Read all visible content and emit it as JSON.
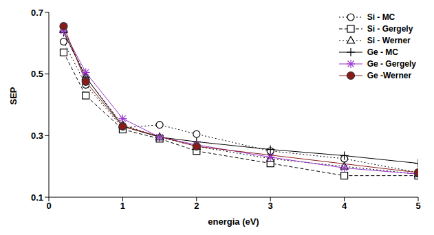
{
  "chart_data": {
    "type": "line",
    "x_label": "energia (eV)",
    "y_label": "SEP",
    "xlim": [
      0,
      5
    ],
    "ylim": [
      0.1,
      0.7
    ],
    "xticks": [
      0,
      1,
      2,
      3,
      4,
      5
    ],
    "yticks": [
      0.1,
      0.3,
      0.5,
      0.7
    ],
    "grid": false,
    "legend": "upper right",
    "series": [
      {
        "name": "Si - MC",
        "color": "#000000",
        "marker": "circle",
        "line_style": "dotted",
        "x": [
          0.2,
          0.5,
          1,
          1.5,
          2,
          3,
          4,
          5
        ],
        "values": [
          0.605,
          0.465,
          0.325,
          0.335,
          0.305,
          0.25,
          0.225,
          0.18
        ]
      },
      {
        "name": "Si - Gergely",
        "color": "#000000",
        "marker": "square",
        "line_style": "dashed",
        "x": [
          0.2,
          0.5,
          1,
          1.5,
          2,
          3,
          4,
          5
        ],
        "values": [
          0.57,
          0.43,
          0.32,
          0.29,
          0.25,
          0.21,
          0.17,
          0.17
        ]
      },
      {
        "name": "Si - Werner",
        "color": "#000000",
        "marker": "triangle",
        "line_style": "dotted",
        "x": [
          0.2,
          0.5,
          1,
          1.5,
          2,
          3,
          4,
          5
        ],
        "values": [
          0.645,
          0.49,
          0.335,
          0.295,
          0.265,
          0.225,
          0.2,
          0.175
        ]
      },
      {
        "name": "Ge - MC",
        "color": "#000000",
        "marker": "plus",
        "line_style": "solid",
        "x": [
          0.2,
          0.5,
          1,
          1.5,
          2,
          3,
          4,
          5
        ],
        "values": [
          0.635,
          0.49,
          0.33,
          0.295,
          0.28,
          0.255,
          0.235,
          0.21
        ]
      },
      {
        "name": "Ge - Gergely",
        "color": "#9933cc",
        "marker": "star",
        "line_style": "solid",
        "x": [
          0.2,
          0.5,
          1,
          1.5,
          2,
          3,
          4,
          5
        ],
        "values": [
          0.64,
          0.505,
          0.355,
          0.295,
          0.27,
          0.23,
          0.195,
          0.175
        ]
      },
      {
        "name": "Ge -Werner",
        "color": "#8b1a1a",
        "marker": "filled_circle",
        "line_style": "solid",
        "x": [
          0.2,
          0.5,
          1,
          2,
          5
        ],
        "values": [
          0.655,
          0.475,
          0.33,
          0.265,
          0.18
        ]
      }
    ]
  }
}
